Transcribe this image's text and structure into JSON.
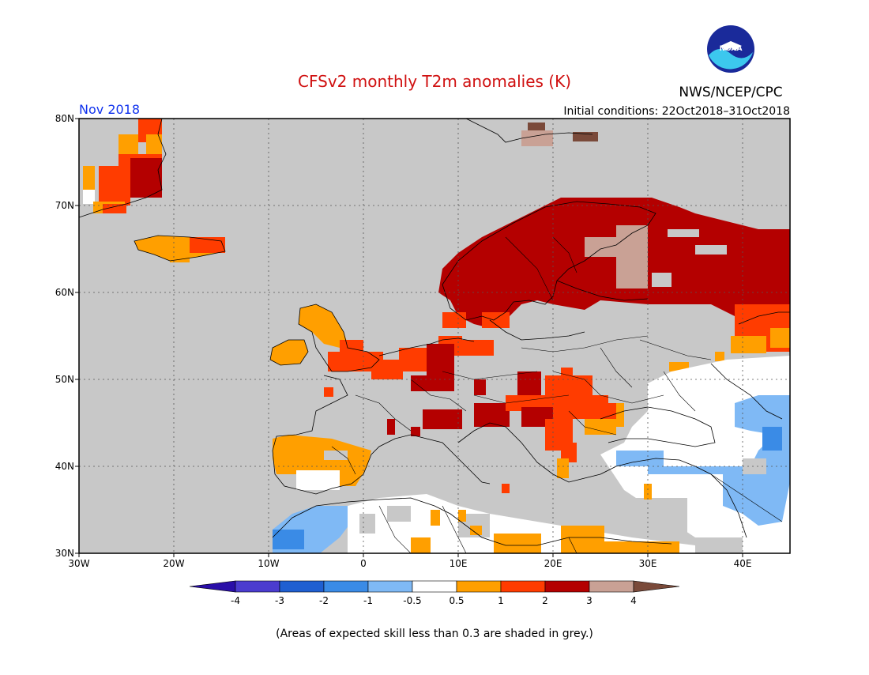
{
  "title": "CFSv2 monthly T2m anomalies (K)",
  "month_label": "Nov 2018",
  "initial_conditions": "Initial conditions: 22Oct2018–31Oct2018",
  "agency": "NWS/NCEP/CPC",
  "logo_text": "NOAA",
  "footnote": "(Areas of expected skill less than 0.3 are shaded in grey.)",
  "map": {
    "lon_range": [
      -30,
      45
    ],
    "lat_range": [
      30,
      80
    ],
    "lon_ticks": [
      "30W",
      "20W",
      "10W",
      "0",
      "10E",
      "20E",
      "30E",
      "40E"
    ],
    "lat_ticks": [
      "80N",
      "70N",
      "60N",
      "50N",
      "40N",
      "30N"
    ],
    "grid": "dotted",
    "background_color": "#c8c8c8"
  },
  "colorbar": {
    "labels": [
      "-4",
      "-3",
      "-2",
      "-1",
      "-0.5",
      "0.5",
      "1",
      "2",
      "3",
      "4"
    ],
    "colors": [
      "#2a0fa8",
      "#4b3ccf",
      "#1f5fd1",
      "#3a8be6",
      "#7fb9f5",
      "#ffffff",
      "#ff9f00",
      "#ff3c00",
      "#b40000",
      "#c9a195",
      "#7a4a3a"
    ]
  }
}
